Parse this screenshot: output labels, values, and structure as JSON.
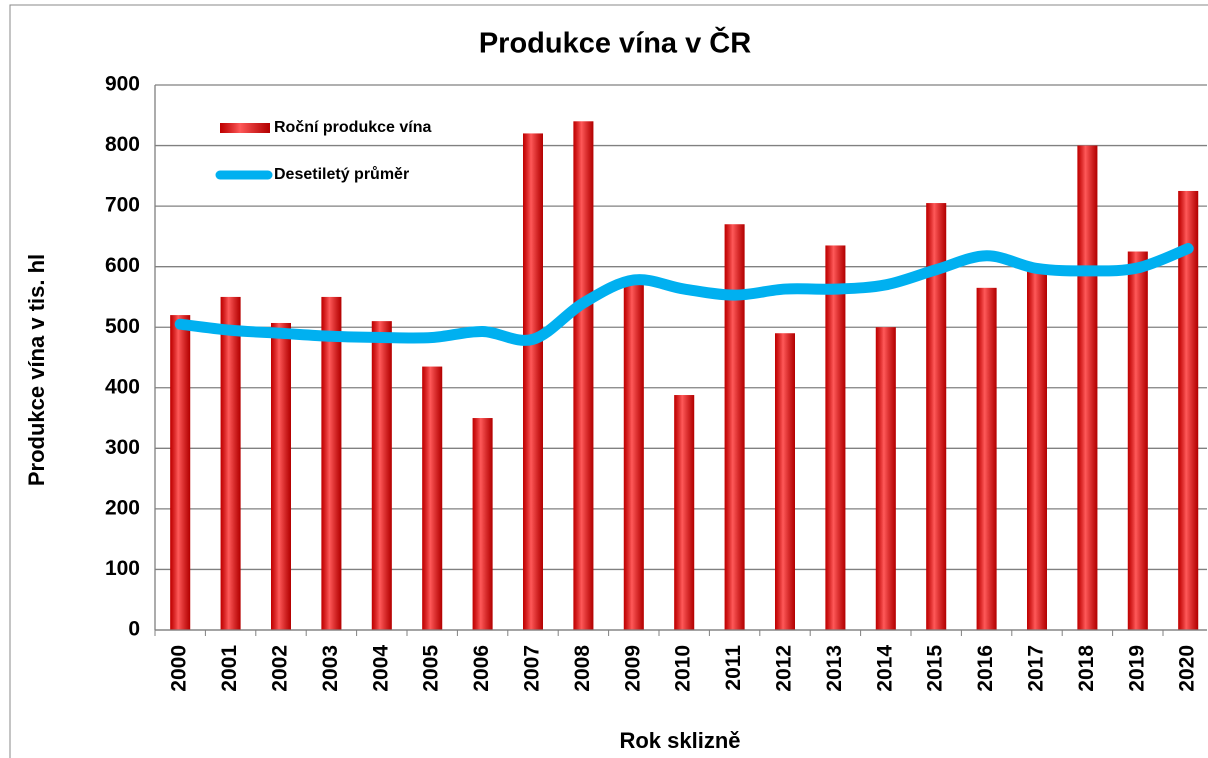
{
  "chart_data": {
    "type": "bar",
    "title": "Produkce vína v ČR",
    "x_label": "Rok sklizně",
    "y_label": "Produkce vína v tis. hl",
    "categories": [
      "2000",
      "2001",
      "2002",
      "2003",
      "2004",
      "2005",
      "2006",
      "2007",
      "2008",
      "2009",
      "2010",
      "2011",
      "2012",
      "2013",
      "2014",
      "2015",
      "2016",
      "2017",
      "2018",
      "2019",
      "2020"
    ],
    "series": [
      {
        "name": "Roční produkce vína",
        "type": "bar",
        "color": "#ff0000",
        "values": [
          520,
          550,
          507,
          550,
          510,
          435,
          350,
          820,
          840,
          570,
          388,
          670,
          490,
          635,
          500,
          705,
          565,
          595,
          800,
          625,
          725
        ]
      },
      {
        "name": "Desetiletý průměr",
        "type": "line",
        "color": "#00b0f0",
        "values": [
          505,
          495,
          490,
          485,
          483,
          483,
          493,
          480,
          540,
          578,
          563,
          553,
          563,
          563,
          570,
          595,
          618,
          597,
          593,
          598,
          630
        ]
      }
    ],
    "ylim": [
      0,
      900
    ],
    "yticks": [
      0,
      100,
      200,
      300,
      400,
      500,
      600,
      700,
      800,
      900
    ],
    "grid": true,
    "legend": "upper-left"
  }
}
